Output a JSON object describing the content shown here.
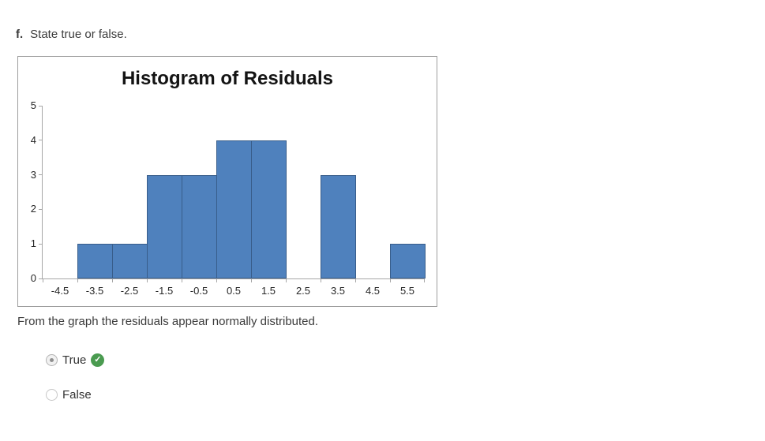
{
  "question": {
    "label": "f.",
    "text": "State true or false."
  },
  "statement": "From the graph the residuals appear normally distributed.",
  "options": [
    {
      "label": "True",
      "selected": true,
      "correct": true
    },
    {
      "label": "False",
      "selected": false,
      "correct": false
    }
  ],
  "icons": {
    "correct_badge_glyph": "✓",
    "correct_badge_color": "#4A9B50"
  },
  "chart_data": {
    "type": "bar",
    "title": "Histogram of Residuals",
    "categories": [
      "-4.5",
      "-3.5",
      "-2.5",
      "-1.5",
      "-0.5",
      "0.5",
      "1.5",
      "2.5",
      "3.5",
      "4.5",
      "5.5"
    ],
    "values": [
      0,
      1,
      1,
      3,
      3,
      4,
      4,
      0,
      3,
      0,
      1
    ],
    "xlabel": "",
    "ylabel": "",
    "ylim": [
      0,
      5
    ],
    "y_ticks": [
      0,
      1,
      2,
      3,
      4,
      5
    ],
    "grid": false,
    "legend": "none",
    "gap_width_pct": 0,
    "bar_fill": "#4F81BD",
    "bar_border": "#385D8A",
    "axis_color": "#A6A6A6"
  }
}
